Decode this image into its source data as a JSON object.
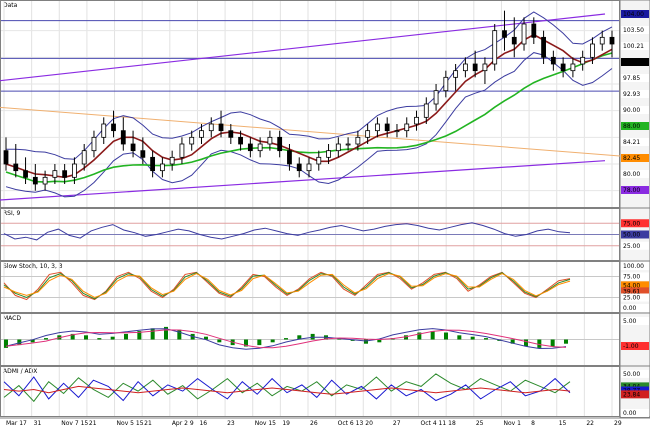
{
  "chart_data": [
    {
      "type": "candlestick",
      "title": "Data",
      "x": [
        "Mar 17",
        "31",
        "Nov 7 15",
        "21",
        "Nov 5 15",
        "21",
        "Apr 2 9",
        "16",
        "23",
        "Nov 15",
        "19",
        "26",
        "Oct 6 13",
        "20",
        "27",
        "Oct 4 11",
        "18",
        "25",
        "Nov 1",
        "8",
        "15",
        "22",
        "29"
      ],
      "ohlc": [
        [
          84,
          86,
          81,
          82
        ],
        [
          82,
          85,
          80,
          81
        ],
        [
          81,
          83,
          79,
          80
        ],
        [
          80,
          82,
          78,
          79
        ],
        [
          79,
          81,
          78,
          80
        ],
        [
          80,
          82,
          79,
          81
        ],
        [
          81,
          82,
          79,
          80
        ],
        [
          80,
          83,
          79,
          82
        ],
        [
          82,
          85,
          81,
          84
        ],
        [
          84,
          87,
          83,
          86
        ],
        [
          86,
          89,
          85,
          88
        ],
        [
          88,
          90,
          86,
          87
        ],
        [
          87,
          89,
          84,
          85
        ],
        [
          85,
          87,
          83,
          84
        ],
        [
          84,
          86,
          82,
          83
        ],
        [
          83,
          84,
          80,
          81
        ],
        [
          81,
          83,
          80,
          82
        ],
        [
          82,
          84,
          81,
          83
        ],
        [
          83,
          86,
          82,
          85
        ],
        [
          85,
          87,
          84,
          86
        ],
        [
          86,
          88,
          85,
          87
        ],
        [
          87,
          89,
          86,
          88
        ],
        [
          88,
          90,
          86,
          87
        ],
        [
          87,
          88,
          85,
          86
        ],
        [
          86,
          87,
          84,
          85
        ],
        [
          85,
          86,
          83,
          84
        ],
        [
          84,
          86,
          83,
          85
        ],
        [
          85,
          87,
          84,
          86
        ],
        [
          86,
          87,
          83,
          84
        ],
        [
          84,
          85,
          81,
          82
        ],
        [
          82,
          83,
          80,
          81
        ],
        [
          81,
          83,
          80,
          82
        ],
        [
          82,
          84,
          81,
          83
        ],
        [
          83,
          85,
          82,
          84
        ],
        [
          84,
          86,
          83,
          85
        ],
        [
          85,
          86,
          84,
          85
        ],
        [
          85,
          87,
          84,
          86
        ],
        [
          86,
          88,
          85,
          87
        ],
        [
          87,
          89,
          86,
          88
        ],
        [
          88,
          89,
          86,
          87
        ],
        [
          87,
          88,
          86,
          87
        ],
        [
          87,
          89,
          86,
          88
        ],
        [
          88,
          90,
          87,
          89
        ],
        [
          89,
          92,
          88,
          91
        ],
        [
          91,
          94,
          90,
          93
        ],
        [
          93,
          96,
          92,
          95
        ],
        [
          95,
          97,
          93,
          96
        ],
        [
          96,
          98,
          95,
          97
        ],
        [
          97,
          99,
          95,
          96
        ],
        [
          96,
          98,
          94,
          97
        ],
        [
          97,
          103,
          96,
          102
        ],
        [
          102,
          105,
          99,
          101
        ],
        [
          101,
          104,
          98,
          100
        ],
        [
          100,
          104,
          99,
          103
        ],
        [
          103,
          104,
          100,
          101
        ],
        [
          101,
          102,
          97,
          98
        ],
        [
          98,
          99,
          96,
          97
        ],
        [
          97,
          98,
          95,
          96
        ],
        [
          96,
          98,
          95,
          97
        ],
        [
          97,
          99,
          96,
          98
        ],
        [
          98,
          101,
          97,
          100
        ],
        [
          100,
          102,
          99,
          101
        ],
        [
          101,
          102,
          98,
          100
        ]
      ],
      "overlays": [
        {
          "name": "moving-average-short",
          "color": "#8b1a1a"
        },
        {
          "name": "moving-average-long",
          "color": "#22b422"
        },
        {
          "name": "bollinger-bands",
          "color": "#3c3ca0"
        },
        {
          "name": "trend-channel",
          "color": "#8a2be2"
        }
      ],
      "price_labels": [
        {
          "text": "104.00",
          "bg": "#1a1aa0",
          "fg": "#ffffff"
        },
        {
          "text": "103.50",
          "bg": "#ffffff",
          "fg": "#000000"
        },
        {
          "text": "100.21",
          "bg": "#ffffff",
          "fg": "#000000"
        },
        {
          "text": "99.53",
          "bg": "#000000",
          "fg": "#ffffff"
        },
        {
          "text": "97.85",
          "bg": "#ffffff",
          "fg": "#000000"
        },
        {
          "text": "92.93",
          "bg": "#ffffff",
          "fg": "#000000"
        },
        {
          "text": "90.00",
          "bg": "#ffffff",
          "fg": "#000000"
        },
        {
          "text": "88.00",
          "bg": "#22b422",
          "fg": "#ffffff"
        },
        {
          "text": "84.21",
          "bg": "#ffffff",
          "fg": "#000000"
        },
        {
          "text": "82.45",
          "bg": "#ff8c00",
          "fg": "#ffffff"
        },
        {
          "text": "80.00",
          "bg": "#ffffff",
          "fg": "#000000"
        },
        {
          "text": "78.00",
          "bg": "#8a2be2",
          "fg": "#ffffff"
        }
      ]
    },
    {
      "type": "line",
      "title": "RSI, 9",
      "series": [
        {
          "color": "#3c3ca0",
          "values": [
            52,
            40,
            44,
            38,
            55,
            62,
            48,
            42,
            58,
            66,
            72,
            60,
            54,
            46,
            50,
            56,
            62,
            58,
            50,
            44,
            40,
            46,
            52,
            60,
            64,
            58,
            52,
            48,
            55,
            60,
            66,
            70,
            64,
            58,
            62,
            68,
            72,
            74,
            70,
            64,
            60,
            66,
            72,
            76,
            70,
            62,
            52,
            46,
            50,
            58,
            62,
            56,
            54
          ]
        }
      ],
      "reference_lines": [
        75,
        50,
        25
      ],
      "y_labels": [
        "75.00",
        "50.00",
        "25.00"
      ]
    },
    {
      "type": "line",
      "title": "Slow Stoch, 10, 3, 3",
      "series": [
        {
          "color": "#e0502a",
          "values": [
            60,
            30,
            20,
            45,
            80,
            85,
            60,
            30,
            20,
            40,
            75,
            85,
            70,
            40,
            25,
            45,
            80,
            85,
            60,
            35,
            25,
            50,
            80,
            75,
            50,
            30,
            45,
            70,
            85,
            75,
            45,
            30,
            55,
            80,
            85,
            70,
            45,
            60,
            80,
            85,
            70,
            40,
            55,
            75,
            85,
            60,
            35,
            25,
            45,
            65,
            70
          ]
        },
        {
          "color": "#2c8a2c",
          "values": [
            55,
            35,
            25,
            40,
            72,
            82,
            65,
            35,
            22,
            38,
            70,
            82,
            74,
            44,
            28,
            42,
            74,
            84,
            64,
            38,
            28,
            46,
            76,
            78,
            54,
            33,
            42,
            66,
            82,
            78,
            50,
            33,
            50,
            76,
            84,
            74,
            48,
            56,
            76,
            84,
            74,
            45,
            52,
            72,
            84,
            64,
            38,
            27,
            42,
            60,
            68
          ]
        },
        {
          "color": "#ff8c00",
          "values": [
            50,
            38,
            30,
            38,
            65,
            78,
            68,
            40,
            25,
            35,
            64,
            78,
            76,
            48,
            32,
            40,
            68,
            82,
            68,
            42,
            31,
            42,
            70,
            78,
            58,
            36,
            40,
            60,
            78,
            80,
            55,
            36,
            46,
            70,
            82,
            76,
            52,
            53,
            72,
            82,
            76,
            50,
            50,
            68,
            82,
            68,
            42,
            29,
            40,
            56,
            64
          ]
        }
      ],
      "y_labels": [
        "100.00",
        "75.00",
        "54.00",
        "39.61",
        "25.00",
        "0.00"
      ]
    },
    {
      "type": "bar",
      "title": "MACD",
      "series": [
        {
          "name": "histogram",
          "color": "#008000",
          "values": [
            -0.6,
            -0.4,
            -0.2,
            0.1,
            0.3,
            0.4,
            0.3,
            0.1,
            0.2,
            0.4,
            0.6,
            0.8,
            0.9,
            0.7,
            0.4,
            0.2,
            -0.2,
            -0.4,
            -0.5,
            -0.4,
            -0.2,
            0.1,
            0.3,
            0.4,
            0.3,
            0.1,
            -0.1,
            -0.3,
            -0.2,
            0.1,
            0.3,
            0.5,
            0.6,
            0.5,
            0.3,
            0.2,
            0.1,
            -0.1,
            -0.3,
            -0.5,
            -0.6,
            -0.5,
            -0.3
          ]
        },
        {
          "name": "macd-line",
          "color": "#3c3ca0"
        },
        {
          "name": "signal-line",
          "color": "#e0307a"
        }
      ],
      "y_labels": [
        "5.00",
        "-1.00"
      ]
    },
    {
      "type": "line",
      "title": "ADMI / ADX",
      "series": [
        {
          "color": "#2c8a2c",
          "values": [
            20,
            35,
            15,
            40,
            25,
            45,
            30,
            20,
            38,
            28,
            42,
            24,
            35,
            18,
            30,
            44,
            26,
            38,
            22,
            34,
            28,
            40,
            22,
            36,
            30,
            46,
            28,
            40,
            34,
            50,
            38,
            30,
            44,
            36,
            28,
            42,
            34,
            26,
            40
          ]
        },
        {
          "color": "#1a1ad0",
          "values": [
            40,
            22,
            46,
            18,
            38,
            20,
            42,
            34,
            16,
            40,
            22,
            36,
            28,
            44,
            30,
            18,
            40,
            24,
            44,
            26,
            36,
            20,
            42,
            24,
            34,
            18,
            36,
            22,
            30,
            16,
            24,
            36,
            18,
            30,
            40,
            22,
            28,
            44,
            26
          ]
        },
        {
          "color": "#d02020",
          "values": [
            30,
            28,
            30,
            26,
            30,
            34,
            32,
            30,
            28,
            26,
            28,
            30,
            32,
            30,
            28,
            26,
            28,
            30,
            32,
            30,
            28,
            26,
            24,
            26,
            28,
            30,
            32,
            30,
            28,
            26,
            28,
            30,
            32,
            30,
            28,
            26,
            28,
            30,
            28
          ]
        }
      ],
      "y_labels": [
        "50.00",
        "34.04",
        "28.77",
        "23.84",
        "0.00"
      ],
      "label_colors": [
        "#ffffff",
        "#2c8a2c",
        "#1a1ad0",
        "#d02020",
        "#ffffff"
      ]
    }
  ]
}
